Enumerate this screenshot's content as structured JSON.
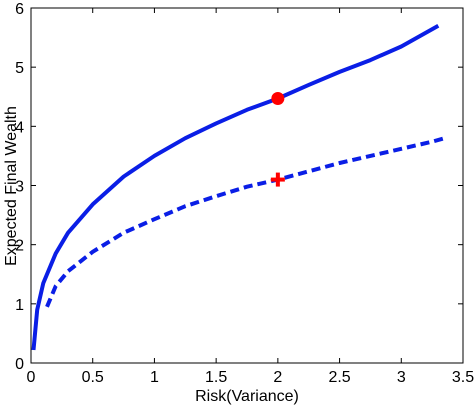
{
  "chart_data": {
    "type": "line",
    "xlabel": "Risk(Variance)",
    "ylabel": "Expected Final Wealth",
    "xlim": [
      0,
      3.5
    ],
    "ylim": [
      0,
      6
    ],
    "xticks": [
      0,
      0.5,
      1,
      1.5,
      2,
      2.5,
      3,
      3.5
    ],
    "yticks": [
      0,
      1,
      2,
      3,
      4,
      5,
      6
    ],
    "xtick_labels": [
      "0",
      "0.5",
      "1",
      "1.5",
      "2",
      "2.5",
      "3",
      "3.5"
    ],
    "ytick_labels": [
      "0",
      "1",
      "2",
      "3",
      "4",
      "5",
      "6"
    ],
    "grid": false,
    "series": [
      {
        "style": "solid",
        "color": "#0a1ee6",
        "x": [
          0.02,
          0.05,
          0.1,
          0.2,
          0.3,
          0.5,
          0.75,
          1.0,
          1.25,
          1.5,
          1.75,
          2.0,
          2.25,
          2.5,
          2.75,
          3.0,
          3.3
        ],
        "y": [
          0.22,
          0.9,
          1.35,
          1.85,
          2.2,
          2.68,
          3.15,
          3.5,
          3.8,
          4.05,
          4.28,
          4.47,
          4.7,
          4.92,
          5.12,
          5.35,
          5.7
        ]
      },
      {
        "style": "dashed",
        "color": "#0a1ee6",
        "x": [
          0.13,
          0.2,
          0.3,
          0.5,
          0.75,
          1.0,
          1.25,
          1.5,
          1.75,
          2.0,
          2.25,
          2.5,
          2.75,
          3.0,
          3.25,
          3.35
        ],
        "y": [
          0.95,
          1.3,
          1.55,
          1.88,
          2.2,
          2.43,
          2.65,
          2.82,
          2.98,
          3.1,
          3.24,
          3.38,
          3.5,
          3.62,
          3.74,
          3.8
        ]
      }
    ],
    "markers": [
      {
        "shape": "circle",
        "color": "#ff0000",
        "x": 2.0,
        "y": 4.47
      },
      {
        "shape": "plus",
        "color": "#ff0000",
        "x": 2.0,
        "y": 3.1
      }
    ]
  }
}
